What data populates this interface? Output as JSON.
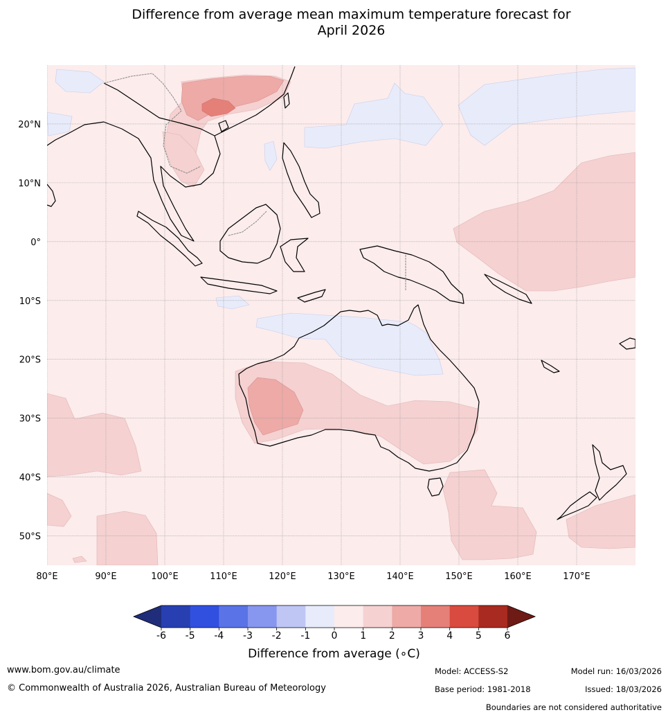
{
  "title": {
    "line1": "Difference from average mean maximum temperature forecast for",
    "line2": "April 2026"
  },
  "map": {
    "lon_range": [
      80,
      180
    ],
    "lat_range": [
      -55,
      30
    ],
    "lon_ticks": [
      "80°E",
      "90°E",
      "100°E",
      "110°E",
      "120°E",
      "130°E",
      "140°E",
      "150°E",
      "160°E",
      "170°E"
    ],
    "lat_ticks": [
      "20°N",
      "10°N",
      "0°",
      "10°S",
      "20°S",
      "30°S",
      "40°S",
      "50°S"
    ],
    "grid": true
  },
  "colorbar": {
    "title": "Difference from average (∘C)",
    "tick_labels": [
      "-6",
      "-5",
      "-4",
      "-3",
      "-2",
      "-1",
      "0",
      "1",
      "2",
      "3",
      "4",
      "5",
      "6"
    ],
    "colors": [
      "#1f2d7a",
      "#273fb1",
      "#3150e0",
      "#5a73e6",
      "#8796ee",
      "#bfc6f4",
      "#e8ebfa",
      "#fcecec",
      "#f5d1d1",
      "#edaaa7",
      "#e58079",
      "#d94a3f",
      "#a82a20",
      "#6e1a15"
    ],
    "extend": "both"
  },
  "footer": {
    "website": "www.bom.gov.au/climate",
    "copyright": "© Commonwealth of Australia 2026, Australian Bureau of Meteorology",
    "model": "Model: ACCESS-S2",
    "base_period": "Base period: 1981-2018",
    "model_run": "Model run: 16/03/2026",
    "issued": "Issued: 18/03/2026",
    "disclaimer": "Boundaries are not considered authoritative"
  }
}
